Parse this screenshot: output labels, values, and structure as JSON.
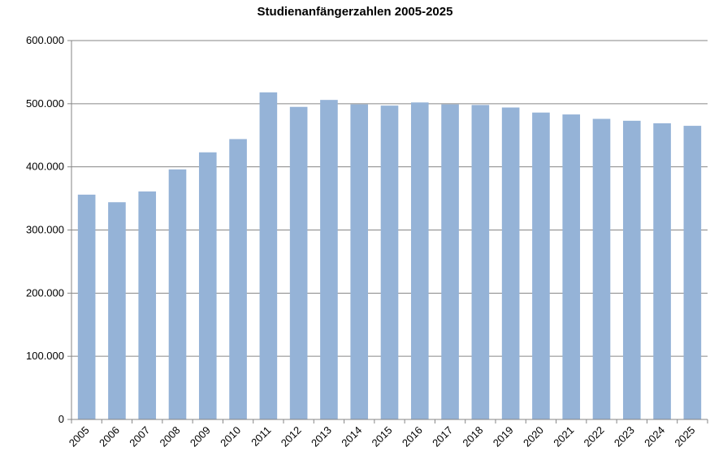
{
  "chart_data": {
    "type": "bar",
    "title": "Studienanfängerzahlen 2005-2025",
    "xlabel": "",
    "ylabel": "",
    "categories": [
      "2005",
      "2006",
      "2007",
      "2008",
      "2009",
      "2010",
      "2011",
      "2012",
      "2013",
      "2014",
      "2015",
      "2016",
      "2017",
      "2018",
      "2019",
      "2020",
      "2021",
      "2022",
      "2023",
      "2024",
      "2025"
    ],
    "values": [
      356000,
      344000,
      361000,
      396000,
      423000,
      444000,
      518000,
      495000,
      506000,
      499000,
      497000,
      502000,
      499000,
      498000,
      494000,
      486000,
      483000,
      476000,
      473000,
      469000,
      465000
    ],
    "ylim": [
      0,
      600000
    ],
    "yticks": [
      0,
      100000,
      200000,
      300000,
      400000,
      500000,
      600000
    ],
    "ytick_labels": [
      "0",
      "100.000",
      "200.000",
      "300.000",
      "400.000",
      "500.000",
      "600.000"
    ],
    "grid": true,
    "legend": "none",
    "bar_color": "#95B3D7"
  }
}
